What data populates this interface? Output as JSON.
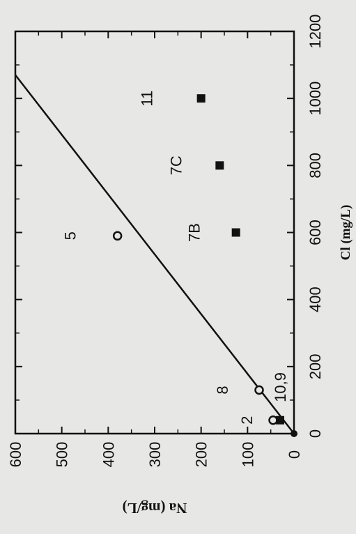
{
  "chart_data": {
    "type": "scatter",
    "orientation": "rotated-90-clockwise",
    "xlabel": "Cl  (mg/L)",
    "ylabel": "Na  (mg/L)",
    "xlim": [
      0,
      1200
    ],
    "ylim": [
      0,
      600
    ],
    "x_ticks": [
      0,
      200,
      400,
      600,
      800,
      1000,
      1200
    ],
    "y_ticks": [
      0,
      100,
      200,
      300,
      400,
      500,
      600
    ],
    "grid": false,
    "legend": "none",
    "reference_line": {
      "x": [
        0,
        1070
      ],
      "y": [
        0,
        600
      ]
    },
    "series": [
      {
        "marker": "open-circle",
        "points": [
          {
            "label": "",
            "x": 40,
            "y": 45
          },
          {
            "label": "8",
            "x": 130,
            "y": 75
          },
          {
            "label": "5",
            "x": 590,
            "y": 380
          }
        ]
      },
      {
        "marker": "filled-square",
        "points": [
          {
            "label": "",
            "x": 40,
            "y": 30
          },
          {
            "label": "7B",
            "x": 600,
            "y": 125
          },
          {
            "label": "7C",
            "x": 800,
            "y": 160
          },
          {
            "label": "11",
            "x": 1000,
            "y": 200
          }
        ]
      }
    ],
    "annotations": [
      "2",
      "10,9"
    ],
    "colors": {
      "background": "#e7e7e5",
      "ink": "#111111"
    }
  }
}
